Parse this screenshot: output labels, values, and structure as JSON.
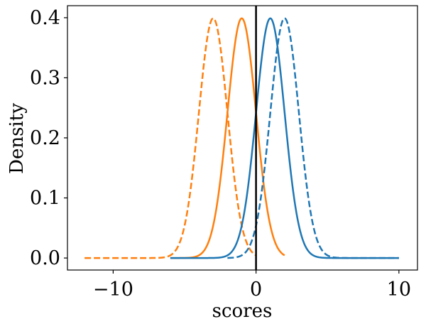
{
  "chart_data": {
    "type": "line",
    "title": "",
    "xlabel": "scores",
    "ylabel": "Density",
    "xlim": [
      -13.2,
      11.3
    ],
    "ylim": [
      -0.02,
      0.42
    ],
    "xticks": [
      -10,
      0,
      10
    ],
    "xtick_labels": [
      "−10",
      "0",
      "10"
    ],
    "yticks": [
      0.0,
      0.1,
      0.2,
      0.3,
      0.4
    ],
    "ytick_labels": [
      "0.0",
      "0.1",
      "0.2",
      "0.3",
      "0.4"
    ],
    "grid": false,
    "legend": "none",
    "reference_line": {
      "x": 0,
      "color": "#000000"
    },
    "series": [
      {
        "color": "#ff7f0e",
        "style": "dashed",
        "mean": -3.0,
        "sd": 1.0,
        "x_range": [
          -12,
          0
        ]
      },
      {
        "color": "#ff7f0e",
        "style": "solid",
        "mean": -1.0,
        "sd": 1.0,
        "x_range": [
          -6,
          2
        ]
      },
      {
        "color": "#1f77b4",
        "style": "solid",
        "mean": 1.0,
        "sd": 1.0,
        "x_range": [
          -6,
          10
        ]
      },
      {
        "color": "#1f77b4",
        "style": "dashed",
        "mean": 2.0,
        "sd": 1.0,
        "x_range": [
          -2,
          10
        ]
      }
    ]
  }
}
